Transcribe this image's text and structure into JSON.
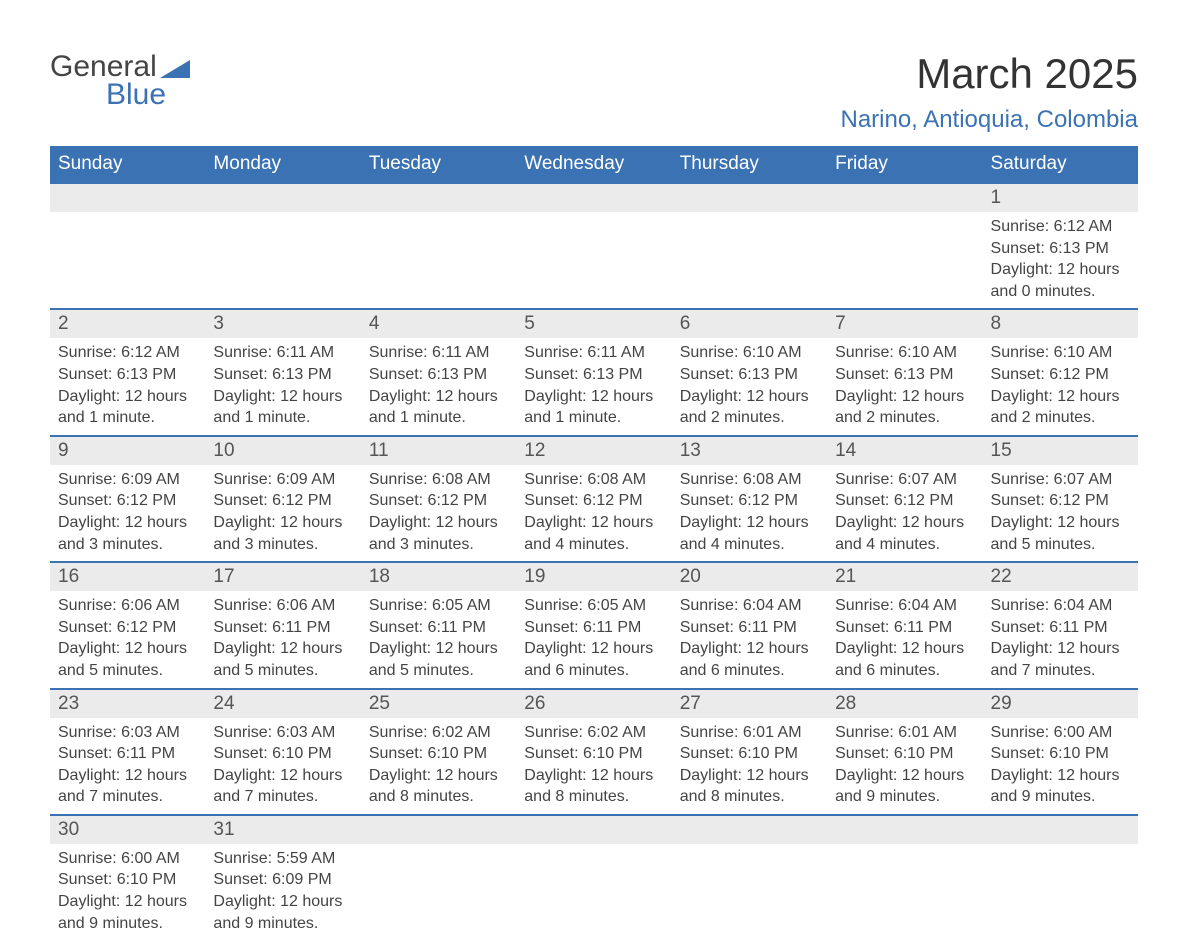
{
  "logo": {
    "word1": "General",
    "word2": "Blue",
    "triangle_color": "#3b72b3"
  },
  "title": "March 2025",
  "subtitle": "Narino, Antioquia, Colombia",
  "colors": {
    "header_bg": "#3b72b3",
    "header_text": "#ffffff",
    "daynum_bg": "#ebebeb",
    "border": "#3b72b3",
    "text": "#444444"
  },
  "columns": [
    "Sunday",
    "Monday",
    "Tuesday",
    "Wednesday",
    "Thursday",
    "Friday",
    "Saturday"
  ],
  "weeks": [
    [
      null,
      null,
      null,
      null,
      null,
      null,
      {
        "n": "1",
        "sr": "6:12 AM",
        "ss": "6:13 PM",
        "dl": "12 hours and 0 minutes."
      }
    ],
    [
      {
        "n": "2",
        "sr": "6:12 AM",
        "ss": "6:13 PM",
        "dl": "12 hours and 1 minute."
      },
      {
        "n": "3",
        "sr": "6:11 AM",
        "ss": "6:13 PM",
        "dl": "12 hours and 1 minute."
      },
      {
        "n": "4",
        "sr": "6:11 AM",
        "ss": "6:13 PM",
        "dl": "12 hours and 1 minute."
      },
      {
        "n": "5",
        "sr": "6:11 AM",
        "ss": "6:13 PM",
        "dl": "12 hours and 1 minute."
      },
      {
        "n": "6",
        "sr": "6:10 AM",
        "ss": "6:13 PM",
        "dl": "12 hours and 2 minutes."
      },
      {
        "n": "7",
        "sr": "6:10 AM",
        "ss": "6:13 PM",
        "dl": "12 hours and 2 minutes."
      },
      {
        "n": "8",
        "sr": "6:10 AM",
        "ss": "6:12 PM",
        "dl": "12 hours and 2 minutes."
      }
    ],
    [
      {
        "n": "9",
        "sr": "6:09 AM",
        "ss": "6:12 PM",
        "dl": "12 hours and 3 minutes."
      },
      {
        "n": "10",
        "sr": "6:09 AM",
        "ss": "6:12 PM",
        "dl": "12 hours and 3 minutes."
      },
      {
        "n": "11",
        "sr": "6:08 AM",
        "ss": "6:12 PM",
        "dl": "12 hours and 3 minutes."
      },
      {
        "n": "12",
        "sr": "6:08 AM",
        "ss": "6:12 PM",
        "dl": "12 hours and 4 minutes."
      },
      {
        "n": "13",
        "sr": "6:08 AM",
        "ss": "6:12 PM",
        "dl": "12 hours and 4 minutes."
      },
      {
        "n": "14",
        "sr": "6:07 AM",
        "ss": "6:12 PM",
        "dl": "12 hours and 4 minutes."
      },
      {
        "n": "15",
        "sr": "6:07 AM",
        "ss": "6:12 PM",
        "dl": "12 hours and 5 minutes."
      }
    ],
    [
      {
        "n": "16",
        "sr": "6:06 AM",
        "ss": "6:12 PM",
        "dl": "12 hours and 5 minutes."
      },
      {
        "n": "17",
        "sr": "6:06 AM",
        "ss": "6:11 PM",
        "dl": "12 hours and 5 minutes."
      },
      {
        "n": "18",
        "sr": "6:05 AM",
        "ss": "6:11 PM",
        "dl": "12 hours and 5 minutes."
      },
      {
        "n": "19",
        "sr": "6:05 AM",
        "ss": "6:11 PM",
        "dl": "12 hours and 6 minutes."
      },
      {
        "n": "20",
        "sr": "6:04 AM",
        "ss": "6:11 PM",
        "dl": "12 hours and 6 minutes."
      },
      {
        "n": "21",
        "sr": "6:04 AM",
        "ss": "6:11 PM",
        "dl": "12 hours and 6 minutes."
      },
      {
        "n": "22",
        "sr": "6:04 AM",
        "ss": "6:11 PM",
        "dl": "12 hours and 7 minutes."
      }
    ],
    [
      {
        "n": "23",
        "sr": "6:03 AM",
        "ss": "6:11 PM",
        "dl": "12 hours and 7 minutes."
      },
      {
        "n": "24",
        "sr": "6:03 AM",
        "ss": "6:10 PM",
        "dl": "12 hours and 7 minutes."
      },
      {
        "n": "25",
        "sr": "6:02 AM",
        "ss": "6:10 PM",
        "dl": "12 hours and 8 minutes."
      },
      {
        "n": "26",
        "sr": "6:02 AM",
        "ss": "6:10 PM",
        "dl": "12 hours and 8 minutes."
      },
      {
        "n": "27",
        "sr": "6:01 AM",
        "ss": "6:10 PM",
        "dl": "12 hours and 8 minutes."
      },
      {
        "n": "28",
        "sr": "6:01 AM",
        "ss": "6:10 PM",
        "dl": "12 hours and 9 minutes."
      },
      {
        "n": "29",
        "sr": "6:00 AM",
        "ss": "6:10 PM",
        "dl": "12 hours and 9 minutes."
      }
    ],
    [
      {
        "n": "30",
        "sr": "6:00 AM",
        "ss": "6:10 PM",
        "dl": "12 hours and 9 minutes."
      },
      {
        "n": "31",
        "sr": "5:59 AM",
        "ss": "6:09 PM",
        "dl": "12 hours and 9 minutes."
      },
      null,
      null,
      null,
      null,
      null
    ]
  ],
  "labels": {
    "sunrise": "Sunrise: ",
    "sunset": "Sunset: ",
    "daylight": "Daylight: "
  }
}
